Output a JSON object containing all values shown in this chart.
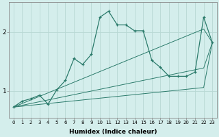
{
  "xlabel": "Humidex (Indice chaleur)",
  "ylabel": "",
  "bg_color": "#d4eeec",
  "line_color": "#2a7a6a",
  "grid_color": "#b8d8d4",
  "x_values": [
    0,
    1,
    2,
    3,
    4,
    5,
    6,
    7,
    8,
    9,
    10,
    11,
    12,
    13,
    14,
    15,
    16,
    17,
    18,
    19,
    20,
    21,
    22,
    23
  ],
  "main_y": [
    0.73,
    0.83,
    0.87,
    0.93,
    0.78,
    1.02,
    1.18,
    1.55,
    1.45,
    1.62,
    2.25,
    2.35,
    2.12,
    2.12,
    2.02,
    2.02,
    1.52,
    1.4,
    1.25,
    1.25,
    1.25,
    1.32,
    2.25,
    1.82
  ],
  "reg1_y": [
    0.73,
    0.79,
    0.85,
    0.91,
    0.97,
    1.03,
    1.09,
    1.15,
    1.21,
    1.27,
    1.33,
    1.39,
    1.45,
    1.51,
    1.57,
    1.63,
    1.69,
    1.75,
    1.81,
    1.87,
    1.93,
    1.99,
    2.05,
    1.82
  ],
  "reg2_y": [
    0.73,
    0.76,
    0.79,
    0.82,
    0.85,
    0.88,
    0.91,
    0.94,
    0.97,
    1.0,
    1.03,
    1.06,
    1.09,
    1.12,
    1.15,
    1.18,
    1.21,
    1.24,
    1.27,
    1.3,
    1.33,
    1.36,
    1.39,
    1.82
  ],
  "reg3_y": [
    0.73,
    0.745,
    0.76,
    0.775,
    0.79,
    0.805,
    0.82,
    0.835,
    0.85,
    0.865,
    0.88,
    0.895,
    0.91,
    0.925,
    0.94,
    0.955,
    0.97,
    0.985,
    1.0,
    1.015,
    1.03,
    1.045,
    1.06,
    1.82
  ],
  "ylim": [
    0.55,
    2.5
  ],
  "yticks": [
    1,
    2
  ],
  "xticks": [
    0,
    1,
    2,
    3,
    4,
    5,
    6,
    7,
    8,
    9,
    10,
    11,
    12,
    13,
    14,
    15,
    16,
    17,
    18,
    19,
    20,
    21,
    22,
    23
  ]
}
